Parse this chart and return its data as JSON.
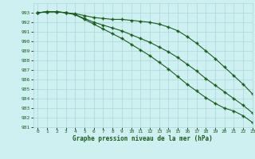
{
  "x": [
    0,
    1,
    2,
    3,
    4,
    5,
    6,
    7,
    8,
    9,
    10,
    11,
    12,
    13,
    14,
    15,
    16,
    17,
    18,
    19,
    20,
    21,
    22,
    23
  ],
  "line_top": [
    993.0,
    993.1,
    993.1,
    993.0,
    992.9,
    992.7,
    992.5,
    992.4,
    992.3,
    992.3,
    992.2,
    992.1,
    992.0,
    991.8,
    991.5,
    991.1,
    990.5,
    989.8,
    989.0,
    988.2,
    987.3,
    986.4,
    985.5,
    984.5
  ],
  "line_mid": [
    993.0,
    993.1,
    993.1,
    993.0,
    992.8,
    992.3,
    991.8,
    991.3,
    990.8,
    990.3,
    989.7,
    989.1,
    988.5,
    987.8,
    987.1,
    986.3,
    985.5,
    984.8,
    984.1,
    983.5,
    983.0,
    982.7,
    982.2,
    981.5
  ],
  "line_bot": [
    993.0,
    993.1,
    993.1,
    993.0,
    992.8,
    992.4,
    992.0,
    991.7,
    991.4,
    991.1,
    990.7,
    990.3,
    989.9,
    989.4,
    988.9,
    988.3,
    987.6,
    986.9,
    986.1,
    985.4,
    984.7,
    984.0,
    983.3,
    982.5
  ],
  "line_color": "#1a5c1a",
  "bg_color": "#cff0f0",
  "grid_color": "#aad8d8",
  "xlabel": "Graphe pression niveau de la mer (hPa)",
  "ylim": [
    981,
    994
  ],
  "xlim": [
    -0.5,
    23
  ],
  "yticks": [
    981,
    982,
    983,
    984,
    985,
    986,
    987,
    988,
    989,
    990,
    991,
    992,
    993
  ],
  "xticks": [
    0,
    1,
    2,
    3,
    4,
    5,
    6,
    7,
    8,
    9,
    10,
    11,
    12,
    13,
    14,
    15,
    16,
    17,
    18,
    19,
    20,
    21,
    22,
    23
  ]
}
